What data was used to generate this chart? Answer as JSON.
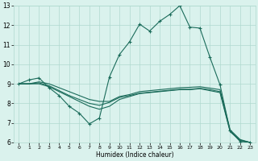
{
  "title": "",
  "xlabel": "Humidex (Indice chaleur)",
  "xlim": [
    -0.5,
    23.5
  ],
  "ylim": [
    6,
    13
  ],
  "yticks": [
    6,
    7,
    8,
    9,
    10,
    11,
    12,
    13
  ],
  "xticks": [
    0,
    1,
    2,
    3,
    4,
    5,
    6,
    7,
    8,
    9,
    10,
    11,
    12,
    13,
    14,
    15,
    16,
    17,
    18,
    19,
    20,
    21,
    22,
    23
  ],
  "bg_color": "#daf2ed",
  "grid_color": "#b0d9cf",
  "line_color": "#1a6b5a",
  "line1_y": [
    9.0,
    9.2,
    9.3,
    8.8,
    8.4,
    7.85,
    7.5,
    6.95,
    7.25,
    9.35,
    10.5,
    11.15,
    12.05,
    11.7,
    12.2,
    12.55,
    13.0,
    11.9,
    11.85,
    10.35,
    8.95,
    6.6,
    6.05,
    6.0
  ],
  "line2_y": [
    9.0,
    9.0,
    9.0,
    8.85,
    8.6,
    8.35,
    8.1,
    7.85,
    7.7,
    7.85,
    8.2,
    8.35,
    8.5,
    8.55,
    8.6,
    8.65,
    8.7,
    8.7,
    8.75,
    8.65,
    8.55,
    6.55,
    6.1,
    6.0
  ],
  "line3_y": [
    9.0,
    9.0,
    9.05,
    8.9,
    8.65,
    8.4,
    8.2,
    8.0,
    7.9,
    8.05,
    8.3,
    8.4,
    8.52,
    8.57,
    8.62,
    8.67,
    8.72,
    8.72,
    8.77,
    8.7,
    8.6,
    6.6,
    6.12,
    6.0
  ],
  "line4_y": [
    9.0,
    9.0,
    9.1,
    9.0,
    8.8,
    8.6,
    8.4,
    8.2,
    8.1,
    8.1,
    8.35,
    8.45,
    8.6,
    8.65,
    8.7,
    8.75,
    8.8,
    8.82,
    8.85,
    8.78,
    8.7,
    6.65,
    6.15,
    6.0
  ]
}
